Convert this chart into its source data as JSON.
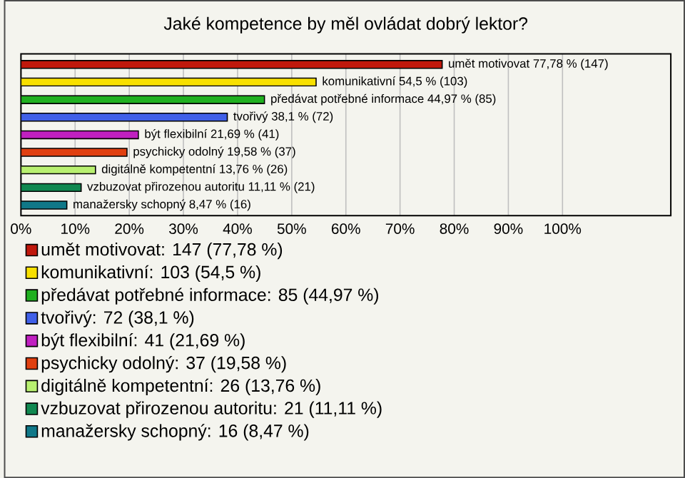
{
  "chart_data": {
    "type": "bar",
    "orientation": "horizontal",
    "title": "Jaké kompetence by měl ovládat dobrý lektor?",
    "categories": [
      null,
      null,
      null,
      null,
      null,
      null,
      null,
      null,
      null
    ],
    "series": [
      {
        "name": "umět motivovat: 147 (77,78 %)",
        "color": "#c0180c",
        "values": [
          77.78,
          null,
          null,
          null,
          null,
          null,
          null,
          null,
          null
        ],
        "value_labels": [
          "umět motivovat 77,78 % (147)",
          null,
          null,
          null,
          null,
          null,
          null,
          null,
          null
        ]
      },
      {
        "name": "komunikativní: 103 (54,5 %)",
        "color": "#f8e000",
        "values": [
          null,
          54.5,
          null,
          null,
          null,
          null,
          null,
          null,
          null
        ],
        "value_labels": [
          null,
          "komunikativní 54,5 % (103)",
          null,
          null,
          null,
          null,
          null,
          null,
          null
        ]
      },
      {
        "name": "předávat potřebné informace: 85 (44,97 %)",
        "color": "#20b020",
        "values": [
          null,
          null,
          44.97,
          null,
          null,
          null,
          null,
          null,
          null
        ],
        "value_labels": [
          null,
          null,
          "předávat potřebné informace 44,97 % (85)",
          null,
          null,
          null,
          null,
          null,
          null
        ]
      },
      {
        "name": "tvořivý: 72 (38,1 %)",
        "color": "#4060e8",
        "values": [
          null,
          null,
          null,
          38.1,
          null,
          null,
          null,
          null,
          null
        ],
        "value_labels": [
          null,
          null,
          null,
          "tvořivý 38,1 % (72)",
          null,
          null,
          null,
          null,
          null
        ]
      },
      {
        "name": "být flexibilní: 41 (21,69 %)",
        "color": "#c020c0",
        "values": [
          null,
          null,
          null,
          null,
          21.69,
          null,
          null,
          null,
          null
        ],
        "value_labels": [
          null,
          null,
          null,
          null,
          "být flexibilní 21,69 % (41)",
          null,
          null,
          null,
          null
        ]
      },
      {
        "name": "psychicky odolný: 37 (19,58 %)",
        "color": "#e04010",
        "values": [
          null,
          null,
          null,
          null,
          null,
          19.58,
          null,
          null,
          null
        ],
        "value_labels": [
          null,
          null,
          null,
          null,
          null,
          "psychicky odolný 19,58 % (37)",
          null,
          null,
          null
        ]
      },
      {
        "name": "digitálně kompetentní: 26 (13,76 %)",
        "color": "#b8f070",
        "values": [
          null,
          null,
          null,
          null,
          null,
          null,
          13.76,
          null,
          null
        ],
        "value_labels": [
          null,
          null,
          null,
          null,
          null,
          null,
          "digitálně kompetentní 13,76 % (26)",
          null,
          null
        ]
      },
      {
        "name": "vzbuzovat přirozenou autoritu: 21 (11,11 %)",
        "color": "#108850",
        "values": [
          null,
          null,
          null,
          null,
          null,
          null,
          null,
          11.11,
          null
        ],
        "value_labels": [
          null,
          null,
          null,
          null,
          null,
          null,
          null,
          "vzbuzovat přirozenou autoritu 11,11 % (21)",
          null
        ]
      },
      {
        "name": "manažersky schopný: 16 (8,47 %)",
        "color": "#107888",
        "values": [
          null,
          null,
          null,
          null,
          null,
          null,
          null,
          null,
          8.47
        ],
        "value_labels": [
          null,
          null,
          null,
          null,
          null,
          null,
          null,
          null,
          "manažersky schopný 8,47 % (16)"
        ]
      }
    ],
    "xlim": [
      0,
      120
    ],
    "xticks": [
      {
        "value": 0,
        "label": "0%"
      },
      {
        "value": 10,
        "label": "10%"
      },
      {
        "value": 20,
        "label": "20%"
      },
      {
        "value": 30,
        "label": "30%"
      },
      {
        "value": 40,
        "label": "40%"
      },
      {
        "value": 50,
        "label": "50%"
      },
      {
        "value": 60,
        "label": "60%"
      },
      {
        "value": 70,
        "label": "70%"
      },
      {
        "value": 80,
        "label": "80%"
      },
      {
        "value": 90,
        "label": "90%"
      },
      {
        "value": 100,
        "label": "100%"
      }
    ],
    "grid": "x",
    "legend": "bottom"
  }
}
